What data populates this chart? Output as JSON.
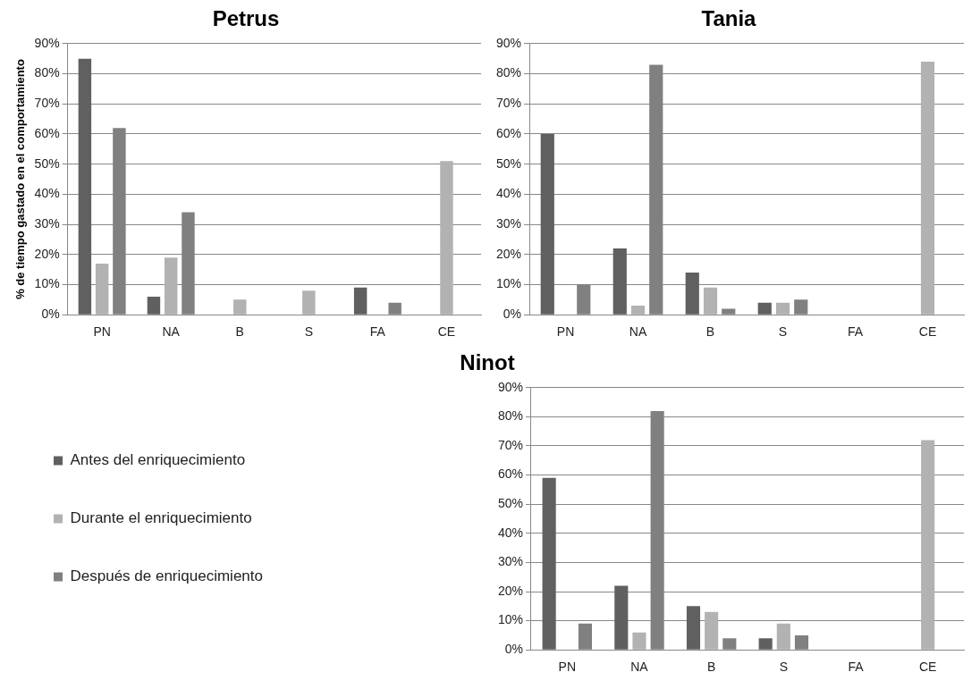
{
  "chart_data": [
    {
      "type": "bar",
      "title": "Petrus",
      "ylabel": "% de tiempo gastado en el comportamiento",
      "categories": [
        "PN",
        "NA",
        "B",
        "S",
        "FA",
        "CE"
      ],
      "series": [
        {
          "color": "#606060",
          "values": [
            85,
            6,
            0,
            0,
            9,
            0
          ]
        },
        {
          "color": "#b2b2b2",
          "values": [
            17,
            19,
            5,
            8,
            0,
            51
          ]
        },
        {
          "color": "#808080",
          "values": [
            62,
            34,
            0,
            0,
            4,
            0
          ]
        }
      ],
      "ylim": [
        0,
        90
      ],
      "yticks": [
        {
          "value": 0,
          "label": "0%"
        },
        {
          "value": 10,
          "label": "10%"
        },
        {
          "value": 20,
          "label": "20%"
        },
        {
          "value": 30,
          "label": "30%"
        },
        {
          "value": 40,
          "label": "40%"
        },
        {
          "value": 50,
          "label": "50%"
        },
        {
          "value": 60,
          "label": "60%"
        },
        {
          "value": 70,
          "label": "70%"
        },
        {
          "value": 80,
          "label": "80%"
        },
        {
          "value": 90,
          "label": "90%"
        }
      ],
      "grid": "y",
      "legend": false
    },
    {
      "type": "bar",
      "title": "Tania",
      "categories": [
        "PN",
        "NA",
        "B",
        "S",
        "FA",
        "CE"
      ],
      "series": [
        {
          "color": "#606060",
          "values": [
            60,
            22,
            14,
            4,
            0,
            0
          ]
        },
        {
          "color": "#b2b2b2",
          "values": [
            0,
            3,
            9,
            4,
            0,
            84
          ]
        },
        {
          "color": "#808080",
          "values": [
            10,
            83,
            2,
            5,
            0,
            0
          ]
        }
      ],
      "ylim": [
        0,
        90
      ],
      "yticks": [
        {
          "value": 0,
          "label": "0%"
        },
        {
          "value": 10,
          "label": "10%"
        },
        {
          "value": 20,
          "label": "20%"
        },
        {
          "value": 30,
          "label": "30%"
        },
        {
          "value": 40,
          "label": "40%"
        },
        {
          "value": 50,
          "label": "50%"
        },
        {
          "value": 60,
          "label": "60%"
        },
        {
          "value": 70,
          "label": "70%"
        },
        {
          "value": 80,
          "label": "80%"
        },
        {
          "value": 90,
          "label": "90%"
        }
      ],
      "grid": "y",
      "legend": false
    },
    {
      "type": "bar",
      "title": "Ninot",
      "categories": [
        "PN",
        "NA",
        "B",
        "S",
        "FA",
        "CE"
      ],
      "series": [
        {
          "name": "Antes del enriquecimiento",
          "color": "#606060",
          "values": [
            59,
            22,
            15,
            4,
            0,
            0
          ]
        },
        {
          "name": "Durante el enriquecimiento",
          "color": "#b2b2b2",
          "values": [
            0,
            6,
            13,
            9,
            0,
            72
          ]
        },
        {
          "name": "Después de enriquecimiento",
          "color": "#808080",
          "values": [
            9,
            82,
            4,
            5,
            0,
            0
          ]
        }
      ],
      "ylim": [
        0,
        90
      ],
      "yticks": [
        {
          "value": 0,
          "label": "0%"
        },
        {
          "value": 10,
          "label": "10%"
        },
        {
          "value": 20,
          "label": "20%"
        },
        {
          "value": 30,
          "label": "30%"
        },
        {
          "value": 40,
          "label": "40%"
        },
        {
          "value": 50,
          "label": "50%"
        },
        {
          "value": 60,
          "label": "60%"
        },
        {
          "value": 70,
          "label": "70%"
        },
        {
          "value": 80,
          "label": "80%"
        },
        {
          "value": 90,
          "label": "90%"
        }
      ],
      "grid": "y",
      "legend": "left"
    }
  ]
}
